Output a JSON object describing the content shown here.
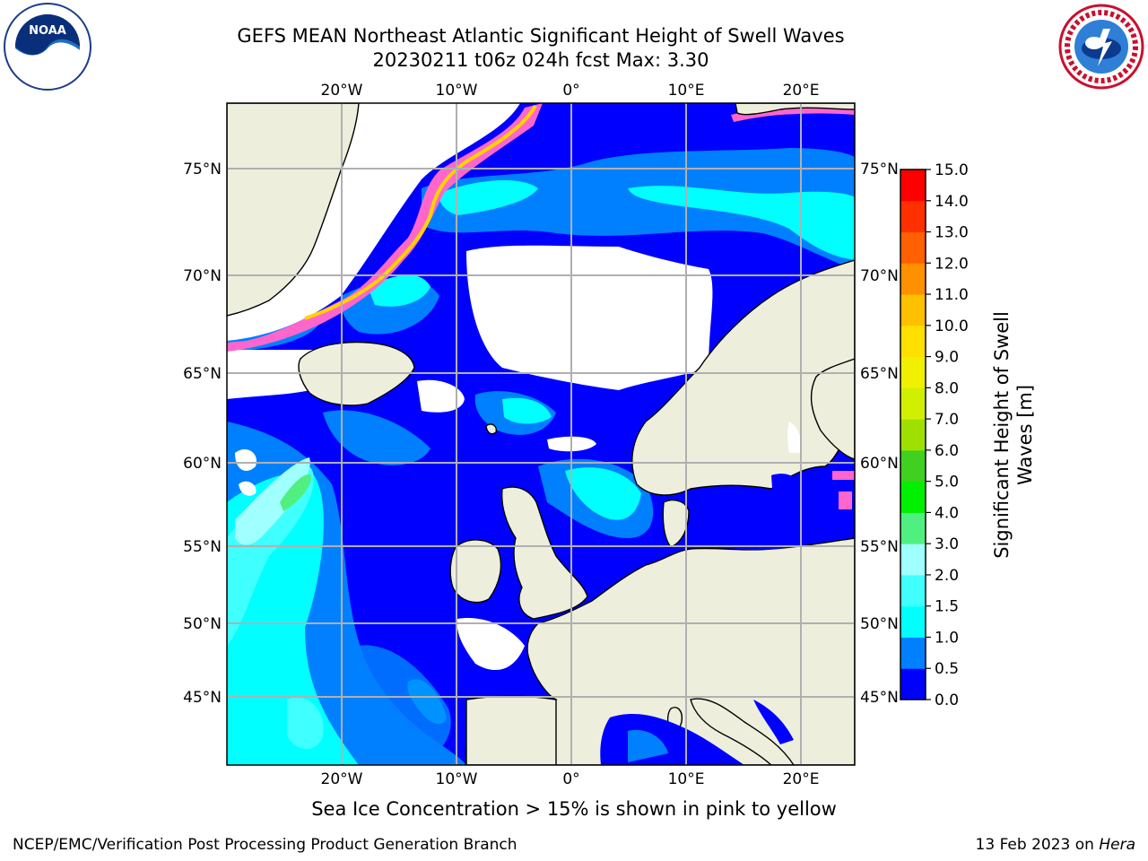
{
  "title": {
    "line1": "GEFS MEAN Northeast Atlantic Significant Height of Swell Waves",
    "line2": "20230211 t06z 024h fcst   Max: 3.30"
  },
  "map": {
    "projection": "lat-lon",
    "lon_range": [
      -30,
      25
    ],
    "lat_range": [
      41,
      78
    ],
    "gridlines": true,
    "top_lon_ticks": [
      "20°W",
      "10°W",
      "0°",
      "10°E",
      "20°E"
    ],
    "bottom_lon_ticks": [
      "20°W",
      "10°W",
      "0°",
      "10°E",
      "20°E"
    ],
    "left_lat_ticks": [
      "75°N",
      "70°N",
      "65°N",
      "60°N",
      "55°N",
      "50°N",
      "45°N"
    ],
    "right_lat_ticks": [
      "75°N",
      "70°N",
      "65°N",
      "60°N",
      "55°N",
      "50°N",
      "45°N"
    ],
    "land_color": "#eeeedd",
    "ocean_low_color": "#0000ff"
  },
  "colorbar": {
    "title": "Significant Height of Swell Waves [m]",
    "title_line1": "Significant Height of Swell",
    "title_line2": "Waves [m]",
    "ticks": [
      "0.0",
      "0.5",
      "1.0",
      "1.5",
      "2.0",
      "3.0",
      "4.0",
      "5.0",
      "6.0",
      "7.0",
      "8.0",
      "9.0",
      "10.0",
      "11.0",
      "12.0",
      "13.0",
      "14.0",
      "15.0"
    ],
    "colors": [
      "#0000ff",
      "#0080ff",
      "#00ffff",
      "#40ffff",
      "#a0ffff",
      "#50f080",
      "#00f000",
      "#40d020",
      "#a0e000",
      "#d0f000",
      "#f0f000",
      "#ffe000",
      "#ffc000",
      "#ff9000",
      "#ff6000",
      "#ff3000",
      "#ff0000"
    ]
  },
  "sea_ice_note": "Sea Ice Concentration > 15% is shown in pink to yellow",
  "credits": {
    "left": "NCEP/EMC/Verification Post Processing Product Generation Branch",
    "right_date": "13 Feb 2023 on ",
    "right_machine": "Hera"
  },
  "logos": {
    "left": "noaa-logo",
    "right": "nws-logo"
  }
}
